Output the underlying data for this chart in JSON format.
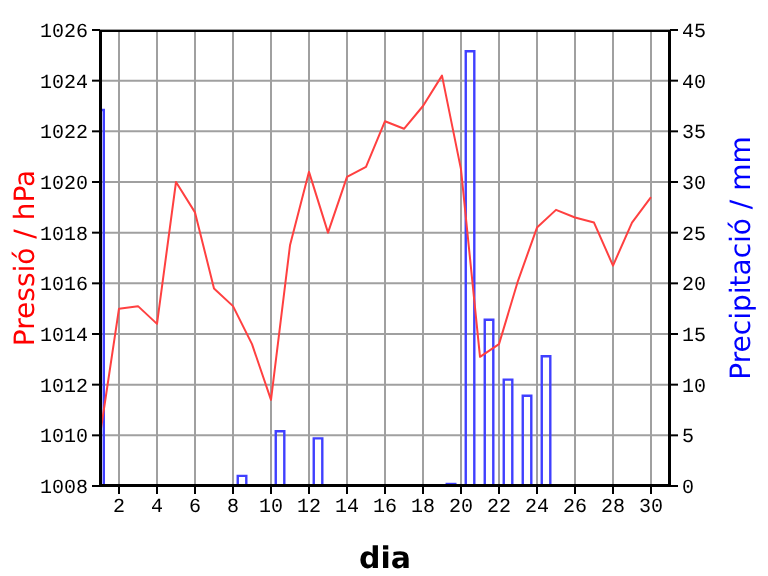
{
  "chart_data": {
    "type": "line",
    "xlabel": "dia",
    "ylabel": "Pressió / hPa",
    "y2label": "Precipitació / mm",
    "x": [
      1,
      2,
      3,
      4,
      5,
      6,
      7,
      8,
      9,
      10,
      11,
      12,
      13,
      14,
      15,
      16,
      17,
      18,
      19,
      20,
      21,
      22,
      23,
      24,
      25,
      26,
      27,
      28,
      29,
      30
    ],
    "series": [
      {
        "color": "#ff4040",
        "values": [
          1010.0,
          1015.0,
          1015.1,
          1014.4,
          1020.0,
          1018.8,
          1015.8,
          1015.1,
          1013.6,
          1011.4,
          1017.5,
          1020.4,
          1018.0,
          1020.2,
          1020.6,
          1022.4,
          1022.1,
          1023.0,
          1024.2,
          1020.5,
          1013.1,
          1013.6,
          1016.1,
          1018.2,
          1018.9,
          1018.6,
          1018.4,
          1016.7,
          1018.4,
          1019.4
        ]
      },
      {
        "type": "bar",
        "axis": "y2",
        "color": "#4040ff",
        "x": [
          1,
          8.5,
          10.5,
          12.5,
          19.5,
          20.5,
          21.5,
          22.5,
          23.5,
          24.5
        ],
        "values": [
          37.1,
          1.0,
          5.4,
          4.7,
          0.2,
          42.9,
          16.4,
          10.5,
          8.9,
          12.8
        ]
      }
    ],
    "xlim": [
      1,
      31
    ],
    "xticks": [
      2,
      4,
      6,
      8,
      10,
      12,
      14,
      16,
      18,
      20,
      22,
      24,
      26,
      28,
      30
    ],
    "ylim": [
      1008,
      1026
    ],
    "yticks": [
      1008,
      1010,
      1012,
      1014,
      1016,
      1018,
      1020,
      1022,
      1024,
      1026
    ],
    "y2lim": [
      0,
      45
    ],
    "y2ticks": [
      0,
      5,
      10,
      15,
      20,
      25,
      30,
      35,
      40,
      45
    ],
    "grid": true,
    "legend": false,
    "marker": "none",
    "line_style": "solid"
  }
}
